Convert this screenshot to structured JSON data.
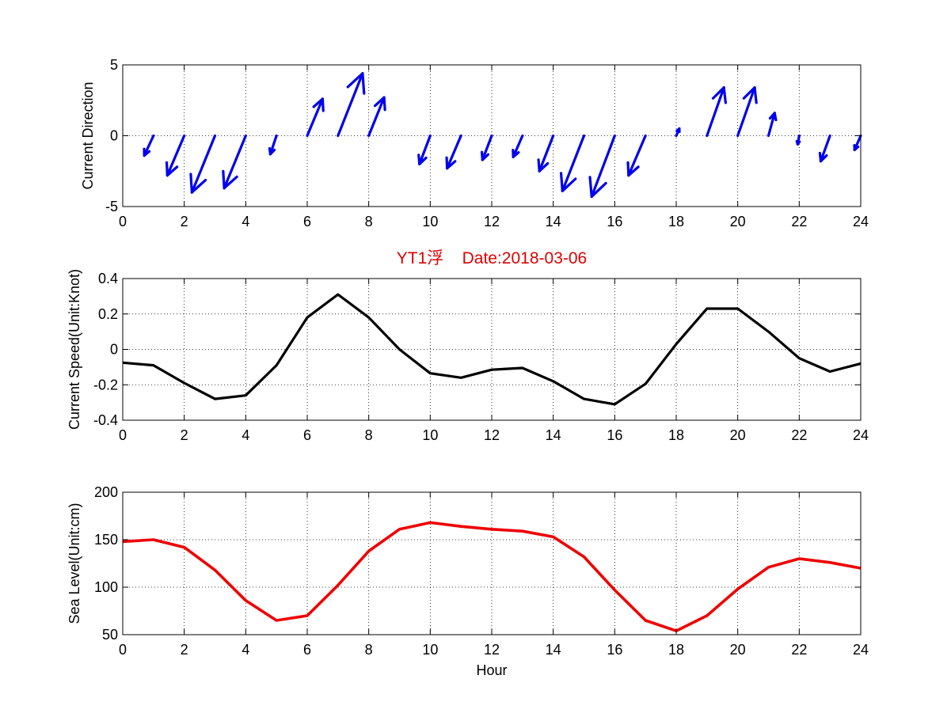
{
  "chart_data": [
    {
      "type": "quiver",
      "ylabel": "Current Direction",
      "xlim": [
        0,
        24
      ],
      "ylim": [
        -5,
        5
      ],
      "xticks": [
        "0",
        "2",
        "4",
        "6",
        "8",
        "10",
        "12",
        "14",
        "16",
        "18",
        "20",
        "22",
        "24"
      ],
      "yticks": [
        "-5",
        "0",
        "5"
      ],
      "grid": true,
      "color": "#0000ee",
      "x": [
        1,
        2,
        3,
        4,
        5,
        6,
        7,
        8,
        10,
        11,
        12,
        13,
        14,
        15,
        16,
        17,
        18,
        19,
        20,
        21,
        22,
        23,
        24
      ],
      "u": [
        -0.3,
        -0.55,
        -0.75,
        -0.7,
        -0.2,
        0.5,
        0.8,
        0.5,
        -0.35,
        -0.45,
        -0.3,
        -0.3,
        -0.45,
        -0.7,
        -0.75,
        -0.55,
        0.1,
        0.55,
        0.55,
        0.2,
        -0.05,
        -0.3,
        -0.2
      ],
      "v": [
        -1.4,
        -2.8,
        -4.0,
        -3.7,
        -1.3,
        2.6,
        4.4,
        2.7,
        -2.0,
        -2.3,
        -1.7,
        -1.5,
        -2.5,
        -3.9,
        -4.3,
        -2.8,
        0.5,
        3.4,
        3.4,
        1.6,
        -0.6,
        -1.8,
        -1.0
      ]
    },
    {
      "type": "line",
      "title": "YT1浮    Date:2018-03-06",
      "ylabel": "Current Speed(Unit:Knot)",
      "xlim": [
        0,
        24
      ],
      "ylim": [
        -0.4,
        0.4
      ],
      "xticks": [
        "0",
        "2",
        "4",
        "6",
        "8",
        "10",
        "12",
        "14",
        "16",
        "18",
        "20",
        "22",
        "24"
      ],
      "yticks": [
        "-0.4",
        "-0.2",
        "0",
        "0.2",
        "0.4"
      ],
      "grid": true,
      "color": "#000000",
      "x": [
        0,
        1,
        2,
        3,
        4,
        5,
        6,
        7,
        8,
        9,
        10,
        11,
        12,
        13,
        14,
        15,
        16,
        17,
        18,
        19,
        20,
        21,
        22,
        23,
        24
      ],
      "y": [
        -0.075,
        -0.09,
        -0.19,
        -0.28,
        -0.26,
        -0.09,
        0.18,
        0.31,
        0.18,
        0.0,
        -0.135,
        -0.16,
        -0.115,
        -0.105,
        -0.18,
        -0.28,
        -0.31,
        -0.195,
        0.03,
        0.23,
        0.23,
        0.1,
        -0.05,
        -0.125,
        -0.08
      ]
    },
    {
      "type": "line",
      "xlabel": "Hour",
      "ylabel": "Sea Level(Unit:cm)",
      "xlim": [
        0,
        24
      ],
      "ylim": [
        50,
        200
      ],
      "xticks": [
        "0",
        "2",
        "4",
        "6",
        "8",
        "10",
        "12",
        "14",
        "16",
        "18",
        "20",
        "22",
        "24"
      ],
      "yticks": [
        "50",
        "100",
        "150",
        "200"
      ],
      "grid": true,
      "color": "#ee0000",
      "x": [
        0,
        1,
        2,
        3,
        4,
        5,
        6,
        7,
        8,
        9,
        10,
        11,
        12,
        13,
        14,
        15,
        16,
        17,
        18,
        19,
        20,
        21,
        22,
        23,
        24
      ],
      "y": [
        148,
        150,
        142,
        118,
        86,
        65,
        70,
        102,
        138,
        161,
        168,
        164,
        161,
        159,
        153,
        132,
        97,
        65,
        54,
        70,
        98,
        121,
        130,
        126,
        120
      ]
    }
  ]
}
